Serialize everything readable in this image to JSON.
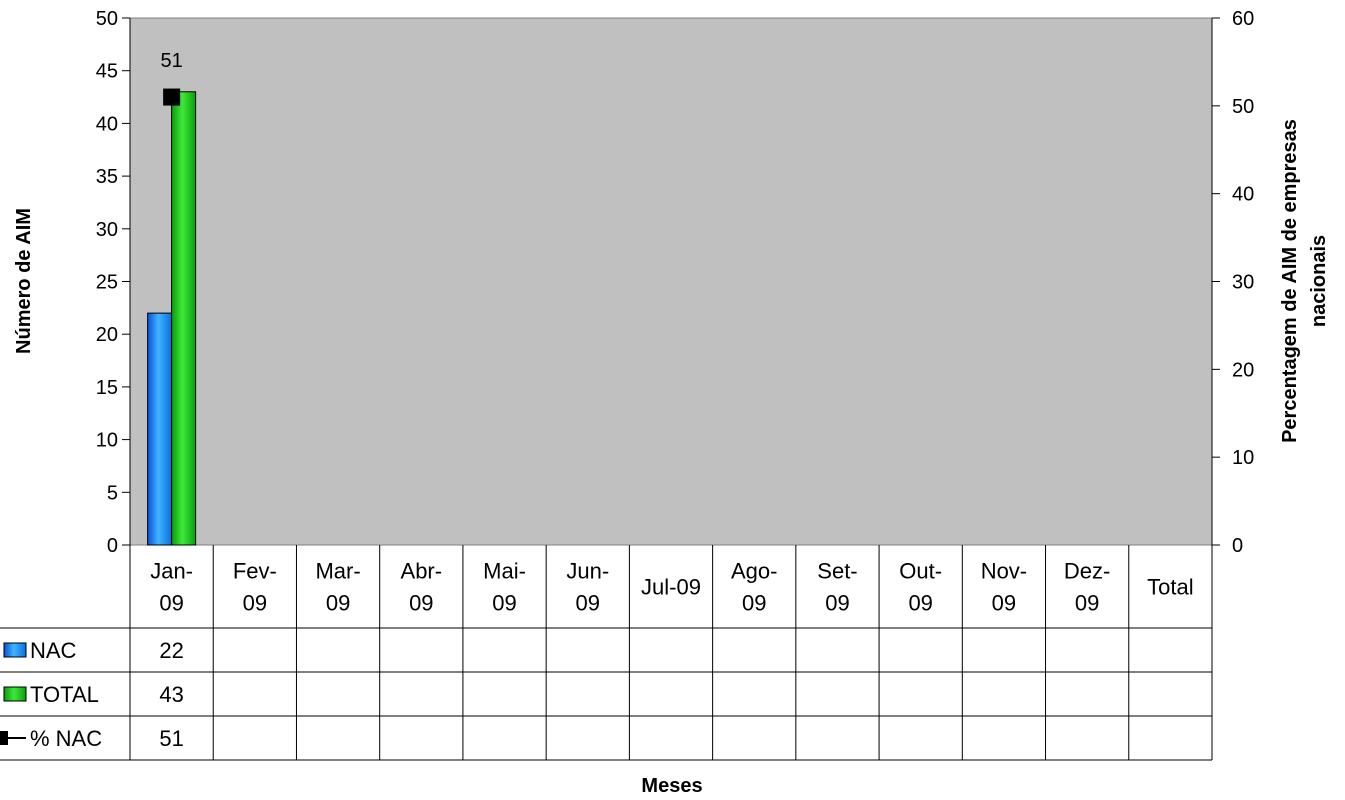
{
  "chart_data": {
    "type": "bar",
    "xlabel": "Meses",
    "ylabel": "Número de AIM",
    "y2label_lines": [
      "Percentagem de AIM de empresas",
      "nacionais"
    ],
    "ylim": [
      0,
      50
    ],
    "y2lim": [
      0,
      60
    ],
    "yticks": [
      0,
      5,
      10,
      15,
      20,
      25,
      30,
      35,
      40,
      45,
      50
    ],
    "y2ticks": [
      0,
      10,
      20,
      30,
      40,
      50,
      60
    ],
    "categories": [
      [
        "Jan-",
        "09"
      ],
      [
        "Fev-",
        "09"
      ],
      [
        "Mar-",
        "09"
      ],
      [
        "Abr-",
        "09"
      ],
      [
        "Mai-",
        "09"
      ],
      [
        "Jun-",
        "09"
      ],
      [
        "Jul-09"
      ],
      [
        "Ago-",
        "09"
      ],
      [
        "Set-",
        "09"
      ],
      [
        "Out-",
        "09"
      ],
      [
        "Nov-",
        "09"
      ],
      [
        "Dez-",
        "09"
      ],
      [
        "Total"
      ]
    ],
    "series": [
      {
        "name": "NAC",
        "kind": "bar",
        "axis": "left",
        "color": "#1e90ff",
        "values": [
          22,
          null,
          null,
          null,
          null,
          null,
          null,
          null,
          null,
          null,
          null,
          null,
          null
        ]
      },
      {
        "name": "TOTAL",
        "kind": "bar",
        "axis": "left",
        "color": "#22c81e",
        "values": [
          43,
          null,
          null,
          null,
          null,
          null,
          null,
          null,
          null,
          null,
          null,
          null,
          null
        ]
      },
      {
        "name": "% NAC",
        "kind": "line",
        "axis": "right",
        "color": "#000000",
        "values": [
          51,
          null,
          null,
          null,
          null,
          null,
          null,
          null,
          null,
          null,
          null,
          null,
          null
        ]
      }
    ],
    "data_labels": [
      {
        "series": "% NAC",
        "category_index": 0,
        "text": "51"
      }
    ],
    "data_table": true,
    "grid": false,
    "plot_background": "#c0c0c0"
  }
}
